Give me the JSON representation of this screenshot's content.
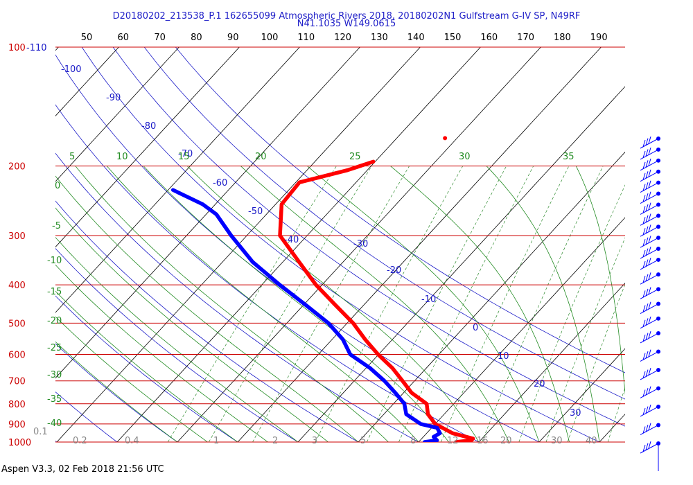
{
  "header": {
    "title_line1": "D20180202_213538_P.1 162655099 Atmospheric Rivers 2018, 20180202N1 Gulfstream G-IV SP, N49RF",
    "title_line2": "N41.1035 W149.0615"
  },
  "footer": {
    "text": "Aspen V3.3, 02 Feb 2018  21:56 UTC"
  },
  "colors": {
    "isobar": "#cc0000",
    "isotherm": "#000000",
    "dry_adiabat": "#1a1ac8",
    "moist_adiabat": "#228b22",
    "mixing_ratio": "#2e8b2e",
    "temperature": "#ff0000",
    "dewpoint": "#0000ff",
    "wind_barb": "#0000ff"
  },
  "chart_data": {
    "type": "skew-t",
    "title": "D20180202_213538_P.1 162655099 Atmospheric Rivers 2018, 20180202N1 Gulfstream G-IV SP, N49RF",
    "pressure_levels_hpa": [
      "100",
      "200",
      "300",
      "400",
      "500",
      "600",
      "700",
      "800",
      "900",
      "1000"
    ],
    "pressure_range_hpa": [
      100,
      1000
    ],
    "top_tick_labels": [
      "50",
      "60",
      "70",
      "80",
      "90",
      "100",
      "110",
      "120",
      "130",
      "140",
      "150",
      "160",
      "170",
      "180",
      "190"
    ],
    "left_temp_labels": [
      "40",
      "30",
      "20",
      "10",
      "0",
      "-10",
      "-20",
      "-30",
      "-40"
    ],
    "left_dry_label": "-110",
    "dry_adiabat_labels": [
      "-100",
      "-90",
      "-80",
      "-70",
      "-60",
      "-50",
      "-40",
      "-30",
      "-20",
      "-10",
      "0",
      "10",
      "20",
      "30"
    ],
    "moist_labels_top": [
      "5",
      "10",
      "15",
      "20",
      "25",
      "30",
      "35"
    ],
    "moist_labels_left": [
      "0",
      "-5",
      "-10",
      "-15",
      "-20",
      "-25",
      "-30",
      "-35",
      "-40"
    ],
    "mixing_ratio_labels": [
      "0.1",
      "0.2",
      "0.4",
      "1",
      "2",
      "3",
      "5",
      "8",
      "12",
      "16",
      "20",
      "30",
      "40"
    ],
    "temperature_profile": [
      {
        "p": 1000,
        "t": 6.2
      },
      {
        "p": 990,
        "t": 8.5
      },
      {
        "p": 980,
        "t": 8.5
      },
      {
        "p": 950,
        "t": 4.3
      },
      {
        "p": 900,
        "t": 0.0
      },
      {
        "p": 850,
        "t": -2.7
      },
      {
        "p": 800,
        "t": -4.5
      },
      {
        "p": 750,
        "t": -8.7
      },
      {
        "p": 700,
        "t": -12.0
      },
      {
        "p": 650,
        "t": -15.6
      },
      {
        "p": 600,
        "t": -20.1
      },
      {
        "p": 550,
        "t": -24.5
      },
      {
        "p": 500,
        "t": -29.0
      },
      {
        "p": 450,
        "t": -34.7
      },
      {
        "p": 400,
        "t": -41.0
      },
      {
        "p": 350,
        "t": -47.3
      },
      {
        "p": 300,
        "t": -54.5
      },
      {
        "p": 250,
        "t": -59.0
      },
      {
        "p": 220,
        "t": -59.4
      },
      {
        "p": 205,
        "t": -53.3
      },
      {
        "p": 195,
        "t": -50.3
      }
    ],
    "temperature_isolated_point": {
      "p": 170,
      "t": -42.0
    },
    "dewpoint_profile": [
      {
        "p": 1000,
        "t": 1.0
      },
      {
        "p": 990,
        "t": 2.8
      },
      {
        "p": 970,
        "t": 1.7
      },
      {
        "p": 950,
        "t": 2.2
      },
      {
        "p": 920,
        "t": 0.9
      },
      {
        "p": 900,
        "t": -2.4
      },
      {
        "p": 850,
        "t": -6.3
      },
      {
        "p": 800,
        "t": -8.2
      },
      {
        "p": 750,
        "t": -11.4
      },
      {
        "p": 700,
        "t": -15.0
      },
      {
        "p": 650,
        "t": -19.3
      },
      {
        "p": 600,
        "t": -24.7
      },
      {
        "p": 550,
        "t": -28.2
      },
      {
        "p": 500,
        "t": -33.1
      },
      {
        "p": 450,
        "t": -39.6
      },
      {
        "p": 400,
        "t": -47.0
      },
      {
        "p": 350,
        "t": -55.0
      },
      {
        "p": 300,
        "t": -62.6
      },
      {
        "p": 265,
        "t": -68.3
      },
      {
        "p": 250,
        "t": -72.1
      },
      {
        "p": 230,
        "t": -79.2
      }
    ],
    "wind_barbs": [
      {
        "p": 170
      },
      {
        "p": 200
      },
      {
        "p": 230
      },
      {
        "p": 260
      },
      {
        "p": 290
      },
      {
        "p": 320
      },
      {
        "p": 350
      },
      {
        "p": 380
      },
      {
        "p": 410
      },
      {
        "p": 440
      },
      {
        "p": 470
      },
      {
        "p": 500
      },
      {
        "p": 540
      },
      {
        "p": 580
      },
      {
        "p": 620
      },
      {
        "p": 660
      },
      {
        "p": 700
      },
      {
        "p": 750
      },
      {
        "p": 800
      },
      {
        "p": 850
      },
      {
        "p": 900
      },
      {
        "p": 950
      },
      {
        "p": 1000
      }
    ],
    "grid": true
  }
}
